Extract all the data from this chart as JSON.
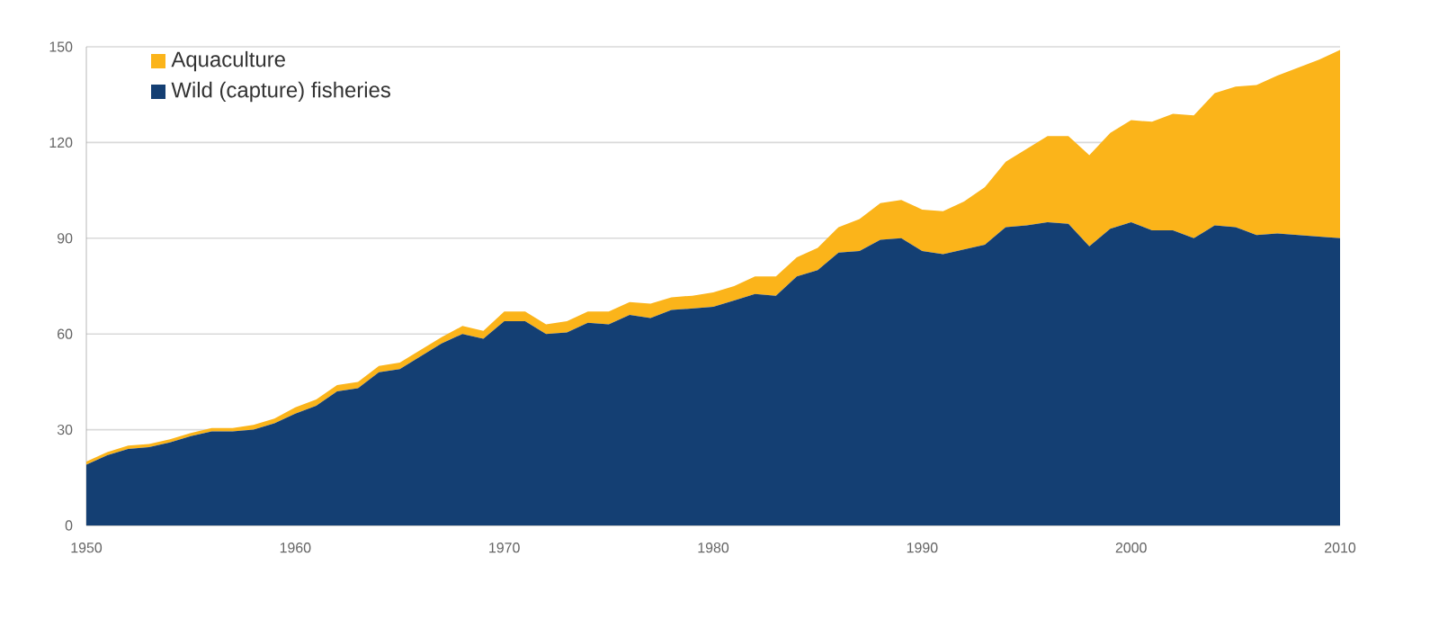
{
  "chart_data": {
    "type": "area",
    "stacked": true,
    "x": [
      1950,
      1951,
      1952,
      1953,
      1954,
      1955,
      1956,
      1957,
      1958,
      1959,
      1960,
      1961,
      1962,
      1963,
      1964,
      1965,
      1966,
      1967,
      1968,
      1969,
      1970,
      1971,
      1972,
      1973,
      1974,
      1975,
      1976,
      1977,
      1978,
      1979,
      1980,
      1981,
      1982,
      1983,
      1984,
      1985,
      1986,
      1987,
      1988,
      1989,
      1990,
      1991,
      1992,
      1993,
      1994,
      1995,
      1996,
      1997,
      1998,
      1999,
      2000,
      2001,
      2002,
      2003,
      2004,
      2005,
      2006,
      2007,
      2008,
      2009,
      2010
    ],
    "series": [
      {
        "name": "Wild (capture) fisheries",
        "color": "#143f73",
        "values": [
          19,
          22,
          24,
          24.5,
          26,
          28,
          29.5,
          29.5,
          30,
          32,
          35,
          37.5,
          42,
          43,
          48,
          49,
          53,
          57,
          60,
          58.5,
          64,
          64,
          60,
          60.5,
          63.5,
          63,
          66,
          65,
          67.5,
          68,
          68.5,
          70.5,
          72.5,
          72,
          78,
          80,
          85.5,
          86,
          89.5,
          90,
          86,
          85,
          86.5,
          88,
          93.5,
          94,
          95,
          94.5,
          87.5,
          93,
          95,
          92.5,
          92.5,
          90,
          94,
          93.5,
          91,
          91.5,
          91,
          90.5,
          90
        ]
      },
      {
        "name": "Aquaculture",
        "color": "#fbb41a",
        "values": [
          1,
          1,
          1,
          1,
          1,
          1,
          1,
          1,
          1.5,
          1.5,
          2,
          2,
          2,
          2,
          2,
          2,
          2,
          2,
          2.5,
          2.5,
          3,
          3,
          3,
          3.5,
          3.5,
          4,
          4,
          4.5,
          4,
          4,
          4.5,
          4.5,
          5.5,
          6,
          6,
          7,
          8,
          10,
          11.5,
          12,
          13,
          13.5,
          15,
          18,
          20.5,
          24,
          27,
          27.5,
          28.5,
          30,
          32,
          34,
          36.5,
          38.5,
          41.5,
          44,
          47,
          49.5,
          52.5,
          55.5,
          59
        ]
      }
    ],
    "xlim": [
      1950,
      2010
    ],
    "xticks": [
      1950,
      1960,
      1970,
      1980,
      1990,
      2000,
      2010
    ],
    "ylim": [
      0,
      150
    ],
    "yticks": [
      0,
      30,
      60,
      90,
      120,
      150
    ],
    "grid": "y",
    "legend": "top left"
  }
}
